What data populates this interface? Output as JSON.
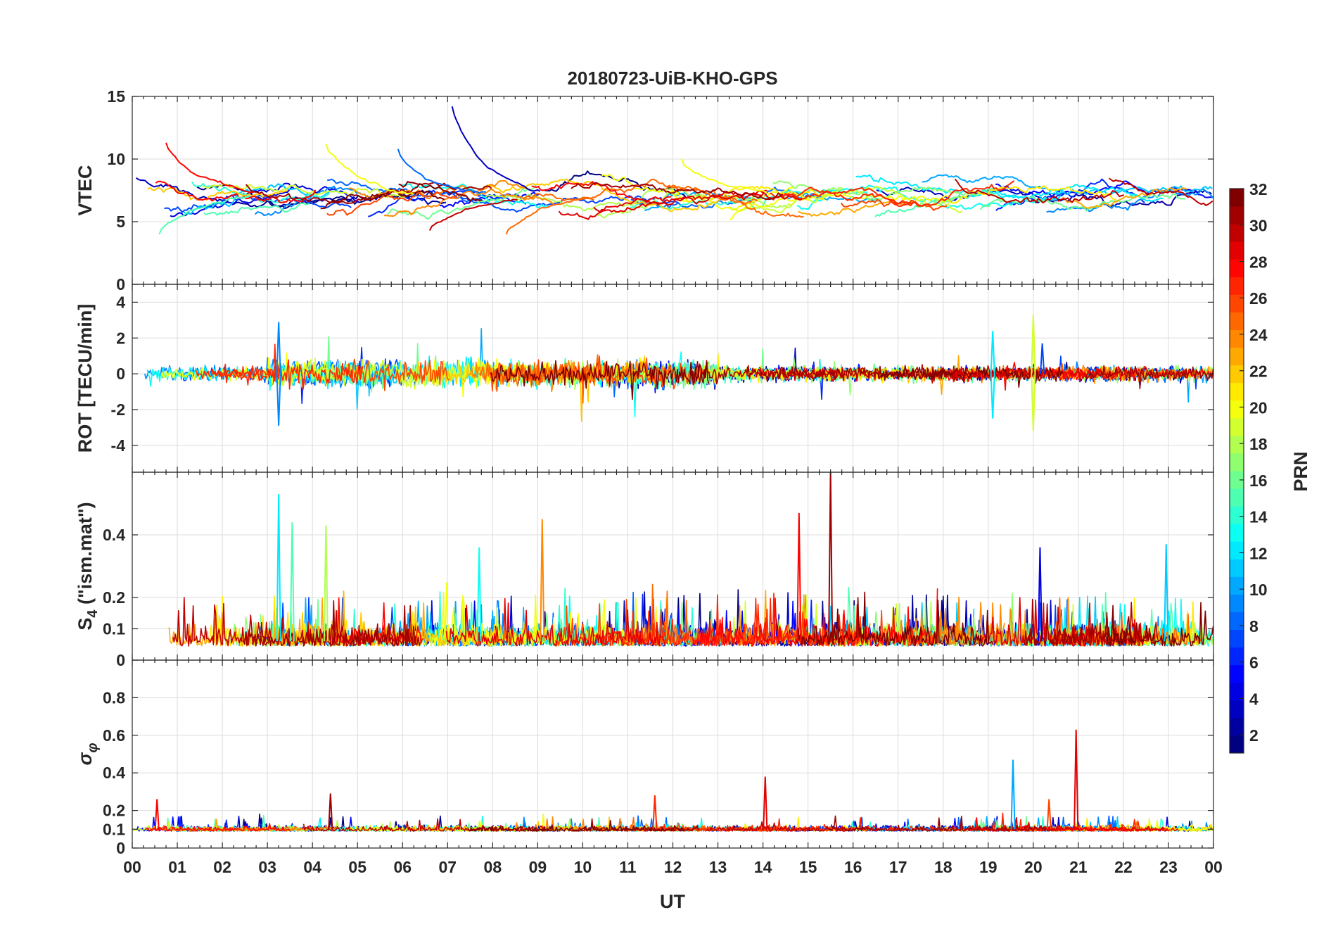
{
  "chart_data": {
    "type": "line",
    "title": "20180723-UiB-KHO-GPS",
    "x_axis": {
      "label": "UT",
      "range_hours": [
        0,
        24
      ],
      "tick_labels": [
        "00",
        "01",
        "02",
        "03",
        "04",
        "05",
        "06",
        "07",
        "08",
        "09",
        "10",
        "11",
        "12",
        "13",
        "14",
        "15",
        "16",
        "17",
        "18",
        "19",
        "20",
        "21",
        "22",
        "23",
        "00"
      ]
    },
    "grid": true,
    "panels": [
      {
        "key": "vtec",
        "ylabel": "VTEC",
        "ylim": [
          0,
          15
        ],
        "yticks": [
          0,
          5,
          10,
          15
        ],
        "yticklabels": [
          "0",
          "5",
          "10",
          "15"
        ],
        "baseline": 7.0,
        "series_description": "one trace per PRN, smooth",
        "features": [
          {
            "x": 0.75,
            "y": 11.3,
            "prn": 28
          },
          {
            "x": 4.3,
            "y": 11.2,
            "prn": 20
          },
          {
            "x": 5.9,
            "y": 10.8,
            "prn": 8
          },
          {
            "x": 7.1,
            "y": 14.2,
            "prn": 3
          },
          {
            "x": 12.2,
            "y": 10.0,
            "prn": 20
          },
          {
            "x": 6.6,
            "y": 4.3,
            "prn": 30
          },
          {
            "x": 8.3,
            "y": 4.0,
            "prn": 25
          },
          {
            "x": 0.6,
            "y": 4.0,
            "prn": 15
          }
        ]
      },
      {
        "key": "rot",
        "ylabel": "ROT [TECU/min]",
        "ylim": [
          -5.5,
          5
        ],
        "yticks": [
          -4,
          -2,
          0,
          2,
          4
        ],
        "yticklabels": [
          "-4",
          "-2",
          "0",
          "2",
          "4"
        ],
        "baseline": 0,
        "features": [
          {
            "x": 3.25,
            "y": 2.9,
            "prn": 9
          },
          {
            "x": 3.25,
            "y": -2.9,
            "prn": 9
          },
          {
            "x": 19.1,
            "y": 2.4,
            "prn": 12
          },
          {
            "x": 19.1,
            "y": -2.5,
            "prn": 12
          },
          {
            "x": 20.0,
            "y": 3.3,
            "prn": 19
          },
          {
            "x": 20.0,
            "y": -3.2,
            "prn": 19
          },
          {
            "x": 20.2,
            "y": 1.7,
            "prn": 7
          }
        ]
      },
      {
        "key": "s4",
        "ylabel": "S4 (\"ism.mat\")",
        "ylabel_main": "S",
        "ylabel_sub": "4",
        "ylabel_rest": " (\"ism.mat\")",
        "ylim": [
          0,
          0.6
        ],
        "yticks": [
          0,
          0.1,
          0.2,
          0.4
        ],
        "yticklabels": [
          "0",
          "0.1",
          "0.2",
          "0.4"
        ],
        "baseline": 0.06,
        "features": [
          {
            "x": 3.25,
            "y": 0.53,
            "prn": 12
          },
          {
            "x": 3.55,
            "y": 0.44,
            "prn": 15
          },
          {
            "x": 4.3,
            "y": 0.43,
            "prn": 18
          },
          {
            "x": 9.1,
            "y": 0.45,
            "prn": 24
          },
          {
            "x": 14.8,
            "y": 0.47,
            "prn": 28
          },
          {
            "x": 15.5,
            "y": 0.6,
            "prn": 31
          },
          {
            "x": 20.15,
            "y": 0.36,
            "prn": 4
          },
          {
            "x": 22.95,
            "y": 0.37,
            "prn": 11
          },
          {
            "x": 7.7,
            "y": 0.36,
            "prn": 13
          }
        ]
      },
      {
        "key": "sigma",
        "ylabel": "σφ",
        "ylabel_main": "σ",
        "ylabel_sub": "φ",
        "ylim": [
          0,
          1
        ],
        "yticks": [
          0,
          0.1,
          0.2,
          0.4,
          0.6,
          0.8
        ],
        "yticklabels": [
          "0",
          "0.1",
          "0.2",
          "0.4",
          "0.6",
          "0.8"
        ],
        "baseline": 0.1,
        "features": [
          {
            "x": 0.55,
            "y": 0.26,
            "prn": 28
          },
          {
            "x": 4.4,
            "y": 0.29,
            "prn": 31
          },
          {
            "x": 11.6,
            "y": 0.28,
            "prn": 27
          },
          {
            "x": 14.05,
            "y": 0.38,
            "prn": 29
          },
          {
            "x": 19.55,
            "y": 0.47,
            "prn": 10
          },
          {
            "x": 20.95,
            "y": 0.63,
            "prn": 29
          },
          {
            "x": 20.35,
            "y": 0.26,
            "prn": 26
          }
        ]
      }
    ],
    "colorbar": {
      "label": "PRN",
      "colormap": "jet",
      "range": [
        1,
        32
      ],
      "ticks": [
        2,
        4,
        6,
        8,
        10,
        12,
        14,
        16,
        18,
        20,
        22,
        24,
        26,
        28,
        30,
        32
      ],
      "tick_labels": [
        "2",
        "4",
        "6",
        "8",
        "10",
        "12",
        "14",
        "16",
        "18",
        "20",
        "22",
        "24",
        "26",
        "28",
        "30",
        "32"
      ]
    },
    "prn_list": [
      1,
      2,
      3,
      4,
      5,
      6,
      7,
      8,
      9,
      10,
      11,
      12,
      13,
      14,
      15,
      16,
      17,
      18,
      19,
      20,
      21,
      22,
      23,
      24,
      25,
      26,
      27,
      28,
      29,
      30,
      31,
      32
    ]
  }
}
